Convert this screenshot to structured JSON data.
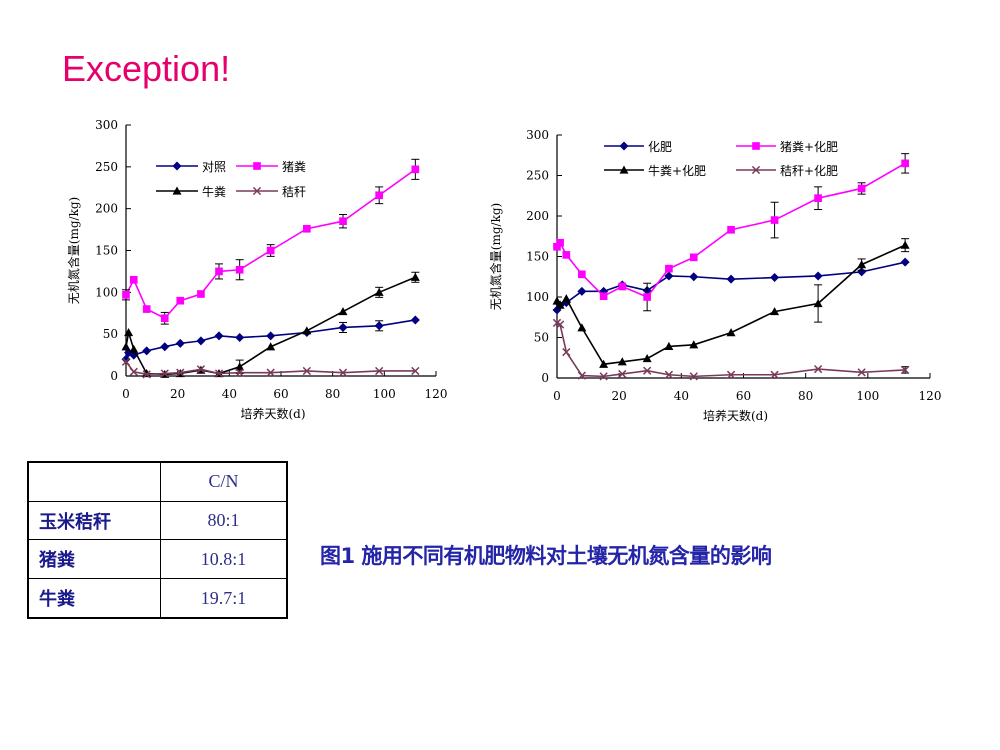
{
  "slide": {
    "title": "Exception!",
    "caption": "图1 施用不同有机肥物料对土壤无机氮含量的影响"
  },
  "cn_table": {
    "header": "C/N",
    "rows": [
      {
        "name": "玉米秸秆",
        "value": "80:1"
      },
      {
        "name": "猪粪",
        "value": "10.8:1"
      },
      {
        "name": "牛粪",
        "value": "19.7:1"
      }
    ]
  },
  "chart_data": [
    {
      "type": "line",
      "title": "",
      "xlabel": "培养天数(d)",
      "ylabel": "无机氮含量(mg/kg)",
      "xlim": [
        0,
        120
      ],
      "ylim": [
        0,
        300
      ],
      "xticks": [
        0,
        20,
        40,
        60,
        80,
        100,
        120
      ],
      "yticks": [
        0,
        50,
        100,
        150,
        200,
        250,
        300
      ],
      "legend_position": "top-left",
      "grid": false,
      "series": [
        {
          "name": "对照",
          "color": "#000080",
          "marker": "diamond",
          "x": [
            0,
            1,
            3,
            8,
            15,
            21,
            29,
            36,
            44,
            56,
            70,
            84,
            98,
            112
          ],
          "y": [
            20,
            28,
            25,
            30,
            35,
            39,
            42,
            48,
            46,
            48,
            52,
            58,
            60,
            67
          ],
          "err": [
            0,
            0,
            0,
            0,
            0,
            0,
            0,
            0,
            0,
            0,
            0,
            6,
            6,
            0
          ]
        },
        {
          "name": "猪粪",
          "color": "#ff00ff",
          "marker": "square",
          "x": [
            0,
            3,
            8,
            15,
            21,
            29,
            36,
            44,
            56,
            70,
            84,
            98,
            112
          ],
          "y": [
            97,
            115,
            80,
            69,
            90,
            98,
            125,
            127,
            150,
            176,
            185,
            216,
            247
          ],
          "err": [
            6,
            0,
            0,
            7,
            0,
            0,
            9,
            12,
            7,
            0,
            8,
            10,
            12
          ]
        },
        {
          "name": "牛粪",
          "color": "#000000",
          "marker": "triangle",
          "x": [
            0,
            1,
            3,
            8,
            15,
            21,
            29,
            36,
            44,
            56,
            70,
            84,
            98,
            112
          ],
          "y": [
            35,
            52,
            32,
            3,
            2,
            3,
            7,
            3,
            11,
            35,
            54,
            77,
            100,
            118
          ],
          "err": [
            0,
            0,
            0,
            0,
            0,
            0,
            0,
            0,
            8,
            0,
            0,
            0,
            6,
            6
          ]
        },
        {
          "name": "秸秆",
          "color": "#7a3a5a",
          "marker": "x",
          "x": [
            0,
            3,
            8,
            15,
            21,
            29,
            36,
            44,
            56,
            70,
            84,
            98,
            112
          ],
          "y": [
            17,
            5,
            2,
            3,
            4,
            8,
            3,
            4,
            4,
            6,
            4,
            6,
            6
          ],
          "err": [
            0,
            0,
            0,
            0,
            0,
            0,
            0,
            0,
            0,
            0,
            0,
            0,
            0
          ]
        }
      ]
    },
    {
      "type": "line",
      "title": "",
      "xlabel": "培养天数(d)",
      "ylabel": "无机氮含量(mg/kg)",
      "xlim": [
        0,
        120
      ],
      "ylim": [
        0,
        300
      ],
      "xticks": [
        0,
        20,
        40,
        60,
        80,
        100,
        120
      ],
      "yticks": [
        0,
        50,
        100,
        150,
        200,
        250,
        300
      ],
      "legend_position": "top",
      "grid": false,
      "series": [
        {
          "name": "化肥",
          "color": "#000080",
          "marker": "diamond",
          "x": [
            0,
            1,
            3,
            8,
            15,
            21,
            29,
            36,
            44,
            56,
            70,
            84,
            98,
            112
          ],
          "y": [
            84,
            90,
            93,
            107,
            107,
            115,
            108,
            126,
            125,
            122,
            124,
            126,
            131,
            143
          ],
          "err": [
            0,
            0,
            0,
            0,
            0,
            0,
            0,
            0,
            0,
            0,
            0,
            0,
            0,
            0
          ]
        },
        {
          "name": "猪粪+化肥",
          "color": "#ff00ff",
          "marker": "square",
          "x": [
            0,
            1,
            3,
            8,
            15,
            21,
            29,
            36,
            44,
            56,
            70,
            84,
            98,
            112
          ],
          "y": [
            162,
            167,
            152,
            128,
            101,
            113,
            100,
            135,
            149,
            183,
            195,
            222,
            234,
            265
          ],
          "err": [
            0,
            0,
            0,
            0,
            0,
            0,
            17,
            0,
            0,
            0,
            22,
            14,
            7,
            12
          ]
        },
        {
          "name": "牛粪+化肥",
          "color": "#000000",
          "marker": "triangle",
          "x": [
            0,
            1,
            3,
            8,
            15,
            21,
            29,
            36,
            44,
            56,
            70,
            84,
            98,
            112
          ],
          "y": [
            95,
            90,
            98,
            62,
            17,
            20,
            24,
            39,
            41,
            56,
            82,
            92,
            140,
            164
          ],
          "err": [
            0,
            0,
            0,
            0,
            0,
            0,
            0,
            0,
            0,
            0,
            0,
            23,
            7,
            8
          ]
        },
        {
          "name": "秸秆+化肥",
          "color": "#7a3a5a",
          "marker": "x",
          "x": [
            0,
            1,
            3,
            8,
            15,
            21,
            29,
            36,
            44,
            56,
            70,
            84,
            98,
            112
          ],
          "y": [
            68,
            66,
            32,
            3,
            2,
            5,
            9,
            4,
            2,
            4,
            4,
            11,
            7,
            10
          ],
          "err": [
            0,
            0,
            0,
            0,
            0,
            0,
            0,
            0,
            0,
            0,
            0,
            0,
            0,
            4
          ]
        }
      ]
    }
  ]
}
